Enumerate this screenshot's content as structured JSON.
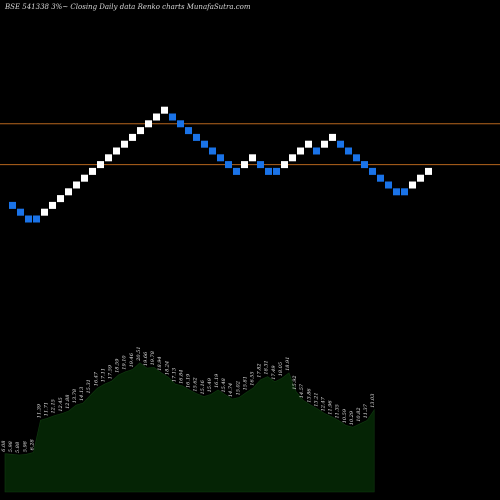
{
  "title": "BSE 541338  3%~  Closing Daily data  Renko  charts MunafaSutra.com",
  "colors": {
    "background": "#000000",
    "brick_up": "#ffffff",
    "brick_down": "#1a73e8",
    "line": "#b5651d",
    "area_fill": "#052405",
    "area_edge": "#0f3a0f"
  },
  "chart_data": {
    "type": "area",
    "renko": {
      "levels": [
        19,
        18,
        17,
        17,
        18,
        19,
        20,
        21,
        22,
        23,
        24,
        25,
        26,
        27,
        28,
        29,
        30,
        31,
        32,
        33,
        32,
        31,
        30,
        29,
        28,
        27,
        26,
        25,
        24,
        25,
        26,
        25,
        24,
        24,
        25,
        26,
        27,
        28,
        27,
        28,
        29,
        28,
        27,
        26,
        25,
        24,
        23,
        22,
        21,
        21,
        22,
        23,
        24
      ],
      "directions": [
        "down",
        "down",
        "down",
        "down",
        "up",
        "up",
        "up",
        "up",
        "up",
        "up",
        "up",
        "up",
        "up",
        "up",
        "up",
        "up",
        "up",
        "up",
        "up",
        "up",
        "down",
        "down",
        "down",
        "down",
        "down",
        "down",
        "down",
        "down",
        "down",
        "up",
        "up",
        "down",
        "down",
        "down",
        "up",
        "up",
        "up",
        "up",
        "down",
        "up",
        "up",
        "down",
        "down",
        "down",
        "down",
        "down",
        "down",
        "down",
        "down",
        "down",
        "up",
        "up",
        "up"
      ],
      "reference_lines": [
        31,
        25
      ]
    },
    "area": {
      "labels": [
        "6.08",
        "5.98",
        "5.88",
        "5.98",
        "6.28",
        "11.39",
        "11.71",
        "12.15",
        "12.45",
        "12.88",
        "13.78",
        "14.13",
        "15.31",
        "16.47",
        "17.11",
        "17.59",
        "18.59",
        "19.10",
        "19.46",
        "20.51",
        "19.66",
        "19.78",
        "18.94",
        "18.24",
        "17.13",
        "16.84",
        "16.19",
        "15.62",
        "15.16",
        "15.49",
        "16.19",
        "15.48",
        "14.74",
        "15.02",
        "15.81",
        "16.55",
        "17.82",
        "18.31",
        "17.49",
        "18.05",
        "18.91",
        "15.92",
        "14.57",
        "13.86",
        "13.21",
        "12.47",
        "11.96",
        "11.35",
        "10.59",
        "10.29",
        "10.82",
        "11.37",
        "13.03"
      ],
      "values": [
        6.08,
        5.98,
        5.88,
        5.98,
        6.28,
        11.39,
        11.71,
        12.15,
        12.45,
        12.88,
        13.78,
        14.13,
        15.31,
        16.47,
        17.11,
        17.59,
        18.59,
        19.1,
        19.46,
        20.51,
        19.66,
        19.78,
        18.94,
        18.24,
        17.13,
        16.84,
        16.19,
        15.62,
        15.16,
        15.49,
        16.19,
        15.48,
        14.74,
        15.02,
        15.81,
        16.55,
        17.82,
        18.31,
        17.49,
        18.05,
        18.91,
        15.92,
        14.57,
        13.86,
        13.21,
        12.47,
        11.96,
        11.35,
        10.59,
        10.29,
        10.82,
        11.37,
        13.03
      ],
      "ylim": [
        0,
        30
      ]
    }
  }
}
